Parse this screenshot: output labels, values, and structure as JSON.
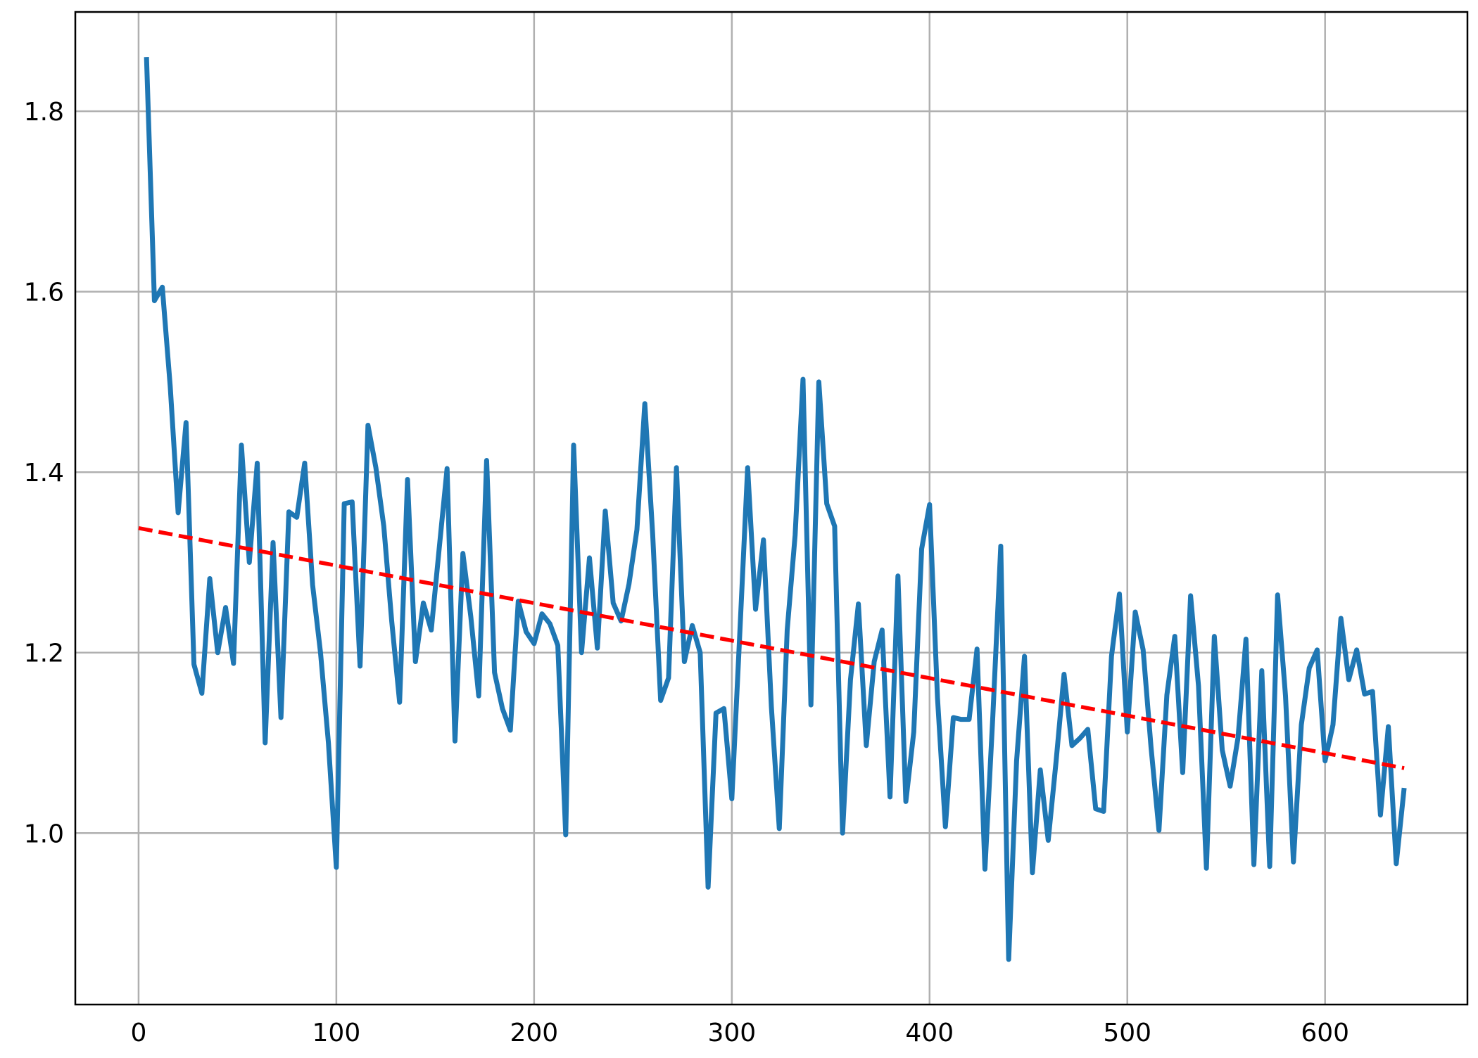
{
  "chart_data": {
    "type": "line",
    "title": "",
    "xlabel": "",
    "ylabel": "",
    "xlim": [
      -32,
      672
    ],
    "ylim": [
      0.81,
      1.91
    ],
    "grid": true,
    "legend": "none",
    "xticks": [
      0,
      100,
      200,
      300,
      400,
      500,
      600
    ],
    "yticks": [
      1.0,
      1.2,
      1.4,
      1.6,
      1.8
    ],
    "xtick_labels": [
      "0",
      "100",
      "200",
      "300",
      "400",
      "500",
      "600"
    ],
    "ytick_labels": [
      "1.0",
      "1.2",
      "1.4",
      "1.6",
      "1.8"
    ],
    "colors": {
      "series": "#1f77b4",
      "trend": "#ff0000",
      "grid": "#b0b0b0",
      "axes": "#000000"
    },
    "series": [
      {
        "style": "solid",
        "x": [
          4,
          8,
          12,
          16,
          20,
          24,
          28,
          32,
          36,
          40,
          44,
          48,
          52,
          56,
          60,
          64,
          68,
          72,
          76,
          80,
          84,
          88,
          92,
          96,
          100,
          104,
          108,
          112,
          116,
          120,
          124,
          128,
          132,
          136,
          140,
          144,
          148,
          152,
          156,
          160,
          164,
          168,
          172,
          176,
          180,
          184,
          188,
          192,
          196,
          200,
          204,
          208,
          212,
          216,
          220,
          224,
          228,
          232,
          236,
          240,
          244,
          248,
          252,
          256,
          260,
          264,
          268,
          272,
          276,
          280,
          284,
          288,
          292,
          296,
          300,
          304,
          308,
          312,
          316,
          320,
          324,
          328,
          332,
          336,
          340,
          344,
          348,
          352,
          356,
          360,
          364,
          368,
          372,
          376,
          380,
          384,
          388,
          392,
          396,
          400,
          404,
          408,
          412,
          416,
          420,
          424,
          428,
          432,
          436,
          440,
          444,
          448,
          452,
          456,
          460,
          464,
          468,
          472,
          476,
          480,
          484,
          488,
          492,
          496,
          500,
          504,
          508,
          512,
          516,
          520,
          524,
          528,
          532,
          536,
          540,
          544,
          548,
          552,
          556,
          560,
          564,
          568,
          572,
          576,
          580,
          584,
          588,
          592,
          596,
          600,
          604,
          608,
          612,
          616,
          620,
          624,
          628,
          632,
          636,
          640
        ],
        "y": [
          1.86,
          1.59,
          1.605,
          1.495,
          1.355,
          1.455,
          1.187,
          1.155,
          1.282,
          1.2,
          1.25,
          1.188,
          1.43,
          1.3,
          1.41,
          1.1,
          1.322,
          1.128,
          1.356,
          1.35,
          1.41,
          1.275,
          1.2,
          1.1,
          0.962,
          1.365,
          1.367,
          1.185,
          1.452,
          1.405,
          1.34,
          1.235,
          1.145,
          1.392,
          1.19,
          1.255,
          1.225,
          1.315,
          1.404,
          1.102,
          1.31,
          1.24,
          1.152,
          1.413,
          1.178,
          1.138,
          1.114,
          1.257,
          1.223,
          1.21,
          1.243,
          1.232,
          1.208,
          0.998,
          1.43,
          1.2,
          1.305,
          1.205,
          1.357,
          1.255,
          1.235,
          1.276,
          1.336,
          1.476,
          1.33,
          1.147,
          1.172,
          1.405,
          1.19,
          1.23,
          1.2,
          0.94,
          1.133,
          1.138,
          1.038,
          1.22,
          1.405,
          1.248,
          1.325,
          1.14,
          1.005,
          1.225,
          1.33,
          1.503,
          1.142,
          1.5,
          1.365,
          1.34,
          1.0,
          1.17,
          1.254,
          1.097,
          1.19,
          1.225,
          1.04,
          1.285,
          1.035,
          1.112,
          1.315,
          1.364,
          1.15,
          1.007,
          1.128,
          1.126,
          1.126,
          1.204,
          0.96,
          1.13,
          1.318,
          0.86,
          1.08,
          1.196,
          0.956,
          1.07,
          0.992,
          1.08,
          1.176,
          1.097,
          1.105,
          1.115,
          1.027,
          1.024,
          1.196,
          1.265,
          1.112,
          1.245,
          1.203,
          1.095,
          1.003,
          1.153,
          1.218,
          1.067,
          1.263,
          1.163,
          0.961,
          1.218,
          1.092,
          1.052,
          1.106,
          1.215,
          0.965,
          1.18,
          0.963,
          1.264,
          1.152,
          0.968,
          1.12,
          1.183,
          1.203,
          1.08,
          1.12,
          1.238,
          1.17,
          1.203,
          1.154,
          1.157,
          1.02,
          1.118,
          0.966,
          1.05
        ]
      },
      {
        "style": "dashed",
        "x": [
          0,
          640
        ],
        "y": [
          1.338,
          1.072
        ]
      }
    ]
  }
}
